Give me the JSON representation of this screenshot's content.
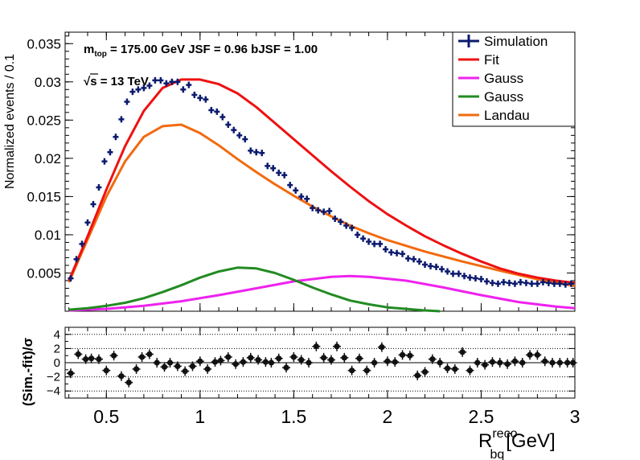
{
  "annotations": {
    "mtop_m": "m",
    "mtop_sub": "top",
    "mtop_rest": " = 175.00 GeV   JSF = 0.96   bJSF = 1.00",
    "sqrt_symbol": "√",
    "energy": "s = 13 TeV"
  },
  "legend": {
    "entries": [
      {
        "label": "Simulation",
        "color": "#0b1a6e",
        "kind": "marker"
      },
      {
        "label": "Fit",
        "color": "#ee1111",
        "kind": "line"
      },
      {
        "label": "Gauss",
        "color": "#ee22ee",
        "kind": "line"
      },
      {
        "label": "Gauss",
        "color": "#228b22",
        "kind": "line"
      },
      {
        "label": "Landau",
        "color": "#f26a0f",
        "kind": "line"
      }
    ]
  },
  "axes": {
    "ylabel_top": "Normalized events / 0.1",
    "ylabel_bottom": "(Sim.-fit)/σ",
    "xlabel_main": "R",
    "xlabel_sup": "reco",
    "xlabel_sub": "bq",
    "xlabel_unit": "[GeV]"
  },
  "chart_data": [
    {
      "type": "scatter",
      "xlim": [
        0.28,
        3.0
      ],
      "ylim": [
        0,
        0.0365
      ],
      "x_ticks": [
        0.5,
        1,
        1.5,
        2,
        2.5,
        3
      ],
      "x_tick_labels": [
        "0.5",
        "1",
        "1.5",
        "2",
        "2.5",
        "3"
      ],
      "y_ticks": [
        0.005,
        0.01,
        0.015,
        0.02,
        0.025,
        0.03,
        0.035
      ],
      "y_tick_labels": [
        "0.005",
        "0.01",
        "0.015",
        "0.02",
        "0.025",
        "0.03",
        "0.035"
      ],
      "series": [
        {
          "name": "Simulation",
          "kind": "points",
          "x": [
            0.31,
            0.34,
            0.37,
            0.4,
            0.43,
            0.46,
            0.49,
            0.52,
            0.55,
            0.58,
            0.61,
            0.64,
            0.67,
            0.7,
            0.73,
            0.76,
            0.79,
            0.82,
            0.85,
            0.88,
            0.91,
            0.94,
            0.97,
            1.0,
            1.03,
            1.06,
            1.09,
            1.12,
            1.15,
            1.18,
            1.21,
            1.24,
            1.27,
            1.3,
            1.33,
            1.36,
            1.39,
            1.42,
            1.45,
            1.48,
            1.51,
            1.54,
            1.57,
            1.6,
            1.63,
            1.66,
            1.69,
            1.72,
            1.75,
            1.78,
            1.81,
            1.84,
            1.87,
            1.9,
            1.93,
            1.96,
            1.99,
            2.02,
            2.05,
            2.08,
            2.11,
            2.14,
            2.17,
            2.2,
            2.23,
            2.26,
            2.29,
            2.32,
            2.35,
            2.38,
            2.41,
            2.44,
            2.47,
            2.5,
            2.53,
            2.56,
            2.59,
            2.62,
            2.65,
            2.68,
            2.71,
            2.74,
            2.77,
            2.8,
            2.83,
            2.86,
            2.89,
            2.92,
            2.95,
            2.98
          ],
          "y": [
            0.0043,
            0.0068,
            0.0088,
            0.0116,
            0.014,
            0.0162,
            0.0196,
            0.0208,
            0.0228,
            0.0251,
            0.0274,
            0.0287,
            0.029,
            0.0292,
            0.0295,
            0.0302,
            0.0302,
            0.0298,
            0.03,
            0.03,
            0.029,
            0.0296,
            0.0283,
            0.0279,
            0.0277,
            0.0263,
            0.0261,
            0.0254,
            0.0244,
            0.0237,
            0.023,
            0.0225,
            0.021,
            0.0208,
            0.0207,
            0.019,
            0.0187,
            0.0181,
            0.0178,
            0.0165,
            0.0158,
            0.015,
            0.0147,
            0.0135,
            0.0132,
            0.013,
            0.0131,
            0.0121,
            0.0117,
            0.0112,
            0.0109,
            0.01,
            0.0095,
            0.0091,
            0.0088,
            0.0088,
            0.0081,
            0.0077,
            0.0076,
            0.0075,
            0.0069,
            0.0068,
            0.0065,
            0.0061,
            0.0059,
            0.0058,
            0.0055,
            0.0052,
            0.0049,
            0.0049,
            0.0046,
            0.0044,
            0.0043,
            0.0042,
            0.0039,
            0.0037,
            0.0036,
            0.0038,
            0.0037,
            0.0036,
            0.0038,
            0.0037,
            0.0036,
            0.0036,
            0.0038,
            0.0037,
            0.0036,
            0.0036,
            0.0035,
            0.0036
          ],
          "x_error": 0.015,
          "color": "#0b1a6e"
        },
        {
          "name": "Fit",
          "kind": "curve",
          "x": [
            0.3,
            0.4,
            0.5,
            0.6,
            0.7,
            0.8,
            0.9,
            1.0,
            1.1,
            1.2,
            1.3,
            1.4,
            1.5,
            1.6,
            1.7,
            1.8,
            1.9,
            2.0,
            2.1,
            2.2,
            2.3,
            2.4,
            2.5,
            2.6,
            2.7,
            2.8,
            2.9,
            3.0
          ],
          "y": [
            0.004,
            0.0098,
            0.0159,
            0.0216,
            0.0262,
            0.0292,
            0.0303,
            0.0303,
            0.0297,
            0.0285,
            0.0267,
            0.0246,
            0.0225,
            0.0204,
            0.0183,
            0.0163,
            0.0144,
            0.0127,
            0.0112,
            0.0098,
            0.0086,
            0.0075,
            0.0065,
            0.0056,
            0.0049,
            0.0044,
            0.004,
            0.0037
          ],
          "color": "#ee1111"
        },
        {
          "name": "Gauss",
          "kind": "curve",
          "x": [
            0.3,
            0.5,
            0.7,
            0.9,
            1.1,
            1.3,
            1.5,
            1.7,
            1.8,
            1.9,
            2.1,
            2.3,
            2.5,
            2.7,
            2.9,
            3.0
          ],
          "y": [
            0.0001,
            0.0003,
            0.0007,
            0.0013,
            0.0021,
            0.003,
            0.0039,
            0.0045,
            0.0046,
            0.0045,
            0.004,
            0.0031,
            0.0021,
            0.0012,
            0.0006,
            0.0004
          ],
          "color": "#ee22ee"
        },
        {
          "name": "Gauss",
          "kind": "curve",
          "x": [
            0.3,
            0.4,
            0.5,
            0.6,
            0.7,
            0.8,
            0.9,
            1.0,
            1.1,
            1.2,
            1.3,
            1.4,
            1.5,
            1.6,
            1.7,
            1.8,
            1.9,
            2.0,
            2.1,
            2.2,
            2.28
          ],
          "y": [
            0.0002,
            0.0004,
            0.0007,
            0.0011,
            0.0017,
            0.0025,
            0.0034,
            0.0044,
            0.0052,
            0.0057,
            0.0056,
            0.005,
            0.0041,
            0.0031,
            0.0022,
            0.0014,
            0.0009,
            0.0005,
            0.0003,
            0.0001,
            0.0
          ],
          "color": "#228b22"
        },
        {
          "name": "Landau",
          "kind": "curve",
          "x": [
            0.3,
            0.4,
            0.5,
            0.6,
            0.7,
            0.8,
            0.9,
            1.0,
            1.1,
            1.2,
            1.3,
            1.4,
            1.5,
            1.6,
            1.7,
            1.8,
            1.9,
            2.0,
            2.2,
            2.4,
            2.6,
            2.8,
            3.0
          ],
          "y": [
            0.0038,
            0.0094,
            0.015,
            0.0196,
            0.0228,
            0.0242,
            0.0244,
            0.0233,
            0.0217,
            0.0199,
            0.0182,
            0.0166,
            0.0151,
            0.0137,
            0.0124,
            0.0112,
            0.0102,
            0.0093,
            0.0078,
            0.0065,
            0.0053,
            0.0042,
            0.0033
          ],
          "color": "#f26a0f"
        }
      ]
    },
    {
      "type": "scatter",
      "xlim": [
        0.28,
        3.0
      ],
      "ylim": [
        -5,
        5
      ],
      "y_ticks": [
        -4,
        -2,
        0,
        2,
        4
      ],
      "y_tick_labels": [
        "−4",
        "−2",
        "0",
        "2",
        "4"
      ],
      "grid_y": [
        -4,
        -2,
        2,
        4
      ],
      "series": [
        {
          "name": "Pull",
          "x": [
            0.31,
            0.35,
            0.39,
            0.42,
            0.46,
            0.5,
            0.54,
            0.58,
            0.62,
            0.66,
            0.69,
            0.73,
            0.77,
            0.81,
            0.84,
            0.88,
            0.92,
            0.96,
            1.0,
            1.04,
            1.08,
            1.11,
            1.15,
            1.19,
            1.23,
            1.27,
            1.31,
            1.35,
            1.38,
            1.42,
            1.46,
            1.5,
            1.54,
            1.58,
            1.62,
            1.66,
            1.7,
            1.73,
            1.77,
            1.81,
            1.85,
            1.89,
            1.93,
            1.97,
            2.0,
            2.04,
            2.08,
            2.12,
            2.16,
            2.2,
            2.24,
            2.28,
            2.32,
            2.36,
            2.4,
            2.44,
            2.48,
            2.52,
            2.56,
            2.6,
            2.64,
            2.68,
            2.72,
            2.76,
            2.8,
            2.84,
            2.88,
            2.92,
            2.96,
            2.99
          ],
          "y": [
            -1.5,
            1.2,
            0.5,
            0.6,
            0.5,
            -1.1,
            1.0,
            -1.9,
            -2.8,
            -0.9,
            0.8,
            1.2,
            0.0,
            -0.6,
            0.0,
            -0.5,
            -1.2,
            -0.5,
            0.2,
            -0.9,
            0.1,
            0.3,
            0.8,
            -0.2,
            0.1,
            0.7,
            0.4,
            0.1,
            0.0,
            0.6,
            -0.7,
            0.8,
            0.4,
            0.0,
            2.3,
            0.7,
            0.4,
            2.3,
            0.7,
            -1.1,
            0.6,
            -1.1,
            0.0,
            2.2,
            0.2,
            0.1,
            1.1,
            1.0,
            -1.8,
            -1.3,
            0.5,
            0.0,
            -0.8,
            -0.9,
            1.5,
            -1.1,
            0.0,
            -0.3,
            0.1,
            0.0,
            -0.2,
            0.2,
            0.0,
            1.1,
            1.1,
            0.2,
            0,
            0,
            0,
            0
          ],
          "color": "#111111"
        }
      ]
    }
  ]
}
